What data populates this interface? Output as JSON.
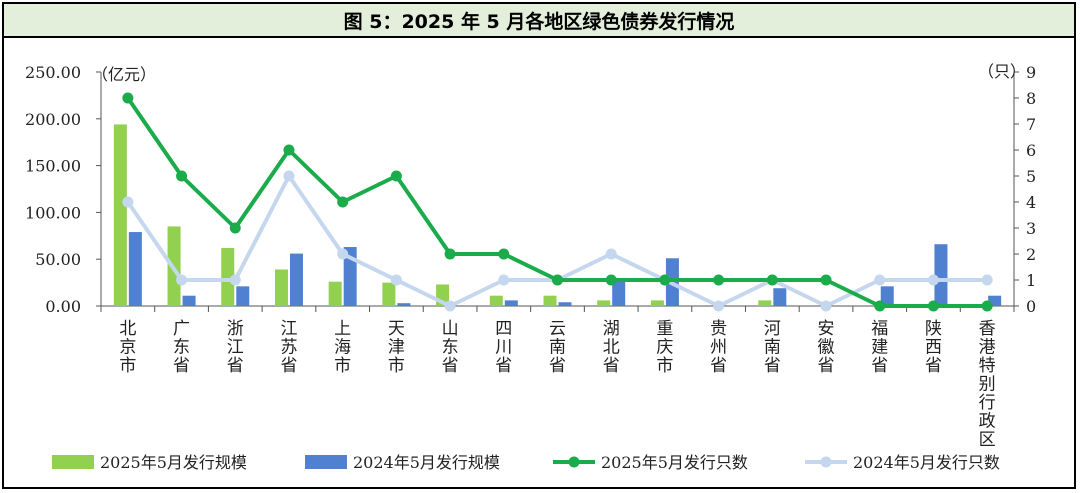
{
  "chart_data": {
    "type": "bar+line",
    "title": "图 5：2025 年 5 月各地区绿色债券发行情况",
    "left_unit": "（亿元）",
    "right_unit": "（只）",
    "left_axis": {
      "min": 0,
      "max": 250,
      "ticks": [
        "0.00",
        "50.00",
        "100.00",
        "150.00",
        "200.00",
        "250.00"
      ]
    },
    "right_axis": {
      "min": 0,
      "max": 9,
      "ticks": [
        "0",
        "1",
        "2",
        "3",
        "4",
        "5",
        "6",
        "7",
        "8",
        "9"
      ]
    },
    "categories": [
      "北京市",
      "广东省",
      "浙江省",
      "江苏省",
      "上海市",
      "天津市",
      "山东省",
      "四川省",
      "云南省",
      "湖北省",
      "重庆市",
      "贵州省",
      "河南省",
      "安徽省",
      "福建省",
      "陕西省",
      "香港特别行政区"
    ],
    "series": [
      {
        "name": "2025年5月发行规模",
        "type": "bar",
        "axis": "left",
        "color": "#92d050",
        "values": [
          194,
          85,
          62,
          39,
          26,
          25,
          23,
          11,
          11,
          6,
          6,
          0,
          6,
          0,
          0,
          0,
          0
        ]
      },
      {
        "name": "2024年5月发行规模",
        "type": "bar",
        "axis": "left",
        "color": "#4f81d0",
        "values": [
          79,
          11,
          21,
          56,
          63,
          3,
          0,
          6,
          4,
          28,
          51,
          0,
          19,
          0,
          21,
          66,
          11
        ]
      },
      {
        "name": "2025年5月发行只数",
        "type": "line",
        "axis": "right",
        "color": "#1aab4a",
        "values": [
          8,
          5,
          3,
          6,
          4,
          5,
          2,
          2,
          1,
          1,
          1,
          1,
          1,
          1,
          0,
          0,
          0
        ]
      },
      {
        "name": "2024年5月发行只数",
        "type": "line",
        "axis": "right",
        "color": "#c5d7ee",
        "values": [
          4,
          1,
          1,
          5,
          2,
          1,
          0,
          1,
          1,
          2,
          1,
          0,
          1,
          0,
          1,
          1,
          1
        ]
      }
    ]
  }
}
